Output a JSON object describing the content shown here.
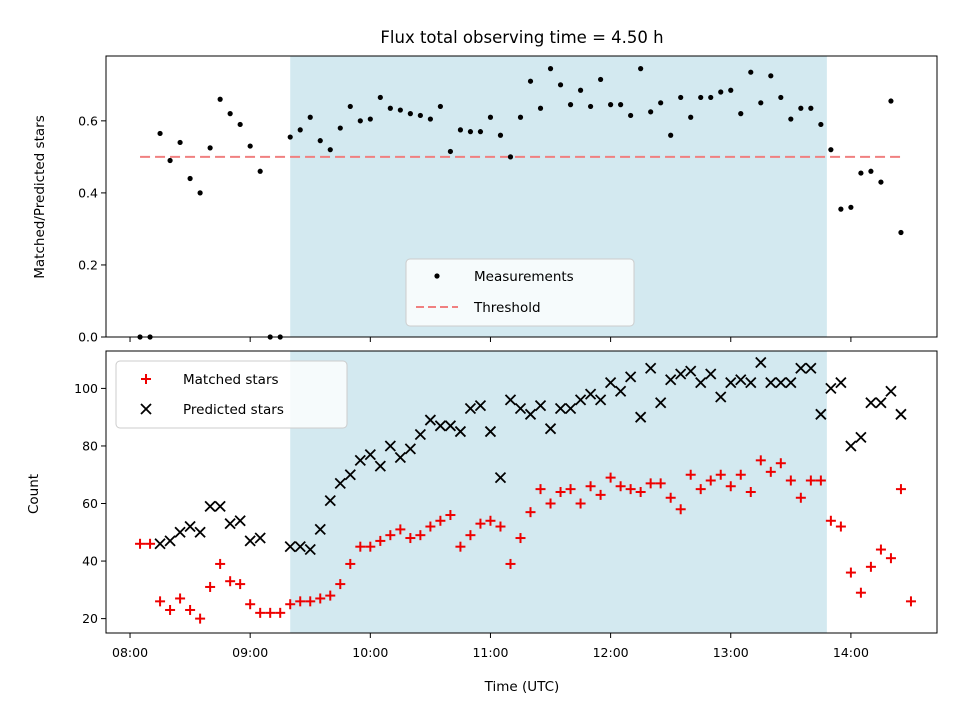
{
  "chart_data": [
    {
      "type": "scatter",
      "title": "Flux total observing time = 4.50 h",
      "ylabel": "Matched/Predicted stars",
      "xlim": [
        "07:48",
        "14:43"
      ],
      "ylim": [
        0,
        0.78
      ],
      "yticks": [
        0.0,
        0.2,
        0.4,
        0.6
      ],
      "ytick_labels": [
        "0.0",
        "0.2",
        "0.4",
        "0.6"
      ],
      "shaded_window": {
        "start": "09:20",
        "end": "13:48",
        "color": "#d3e9f0"
      },
      "threshold": {
        "name": "Threshold",
        "value": 0.5,
        "x_start": "08:05",
        "x_end": "14:25",
        "color": "#f08080"
      },
      "legend": {
        "placement": "lower-center",
        "entries": [
          "Measurements",
          "Threshold"
        ]
      },
      "series": [
        {
          "name": "Measurements",
          "marker": "dot",
          "color": "#000000",
          "points": [
            [
              "08:05",
              0.0
            ],
            [
              "08:10",
              0.0
            ],
            [
              "08:15",
              0.565
            ],
            [
              "08:20",
              0.49
            ],
            [
              "08:25",
              0.54
            ],
            [
              "08:30",
              0.44
            ],
            [
              "08:35",
              0.4
            ],
            [
              "08:40",
              0.525
            ],
            [
              "08:45",
              0.66
            ],
            [
              "08:50",
              0.62
            ],
            [
              "08:55",
              0.59
            ],
            [
              "09:00",
              0.53
            ],
            [
              "09:05",
              0.46
            ],
            [
              "09:10",
              0.0
            ],
            [
              "09:15",
              0.0
            ],
            [
              "09:20",
              0.555
            ],
            [
              "09:25",
              0.575
            ],
            [
              "09:30",
              0.61
            ],
            [
              "09:35",
              0.545
            ],
            [
              "09:40",
              0.52
            ],
            [
              "09:45",
              0.58
            ],
            [
              "09:50",
              0.64
            ],
            [
              "09:55",
              0.6
            ],
            [
              "10:00",
              0.605
            ],
            [
              "10:05",
              0.665
            ],
            [
              "10:10",
              0.635
            ],
            [
              "10:15",
              0.63
            ],
            [
              "10:20",
              0.62
            ],
            [
              "10:25",
              0.615
            ],
            [
              "10:30",
              0.605
            ],
            [
              "10:35",
              0.64
            ],
            [
              "10:40",
              0.515
            ],
            [
              "10:45",
              0.575
            ],
            [
              "10:50",
              0.57
            ],
            [
              "10:55",
              0.57
            ],
            [
              "11:00",
              0.61
            ],
            [
              "11:05",
              0.56
            ],
            [
              "11:10",
              0.5
            ],
            [
              "11:15",
              0.61
            ],
            [
              "11:20",
              0.71
            ],
            [
              "11:25",
              0.635
            ],
            [
              "11:30",
              0.745
            ],
            [
              "11:35",
              0.7
            ],
            [
              "11:40",
              0.645
            ],
            [
              "11:45",
              0.685
            ],
            [
              "11:50",
              0.64
            ],
            [
              "11:55",
              0.715
            ],
            [
              "12:00",
              0.645
            ],
            [
              "12:05",
              0.645
            ],
            [
              "12:10",
              0.615
            ],
            [
              "12:15",
              0.745
            ],
            [
              "12:20",
              0.625
            ],
            [
              "12:25",
              0.65
            ],
            [
              "12:30",
              0.56
            ],
            [
              "12:35",
              0.665
            ],
            [
              "12:40",
              0.61
            ],
            [
              "12:45",
              0.665
            ],
            [
              "12:50",
              0.665
            ],
            [
              "12:55",
              0.68
            ],
            [
              "13:00",
              0.685
            ],
            [
              "13:05",
              0.62
            ],
            [
              "13:10",
              0.735
            ],
            [
              "13:15",
              0.65
            ],
            [
              "13:20",
              0.725
            ],
            [
              "13:25",
              0.665
            ],
            [
              "13:30",
              0.605
            ],
            [
              "13:35",
              0.635
            ],
            [
              "13:40",
              0.635
            ],
            [
              "13:45",
              0.59
            ],
            [
              "13:50",
              0.52
            ],
            [
              "13:55",
              0.355
            ],
            [
              "14:00",
              0.36
            ],
            [
              "14:05",
              0.455
            ],
            [
              "14:10",
              0.46
            ],
            [
              "14:15",
              0.43
            ],
            [
              "14:20",
              0.655
            ],
            [
              "14:25",
              0.29
            ]
          ]
        }
      ]
    },
    {
      "type": "scatter",
      "xlabel": "Time (UTC)",
      "ylabel": "Count",
      "xlim": [
        "07:48",
        "14:43"
      ],
      "ylim": [
        15,
        113
      ],
      "xticks": [
        "08:00",
        "09:00",
        "10:00",
        "11:00",
        "12:00",
        "13:00",
        "14:00"
      ],
      "yticks": [
        20,
        40,
        60,
        80,
        100
      ],
      "shaded_window": {
        "start": "09:20",
        "end": "13:48",
        "color": "#d3e9f0"
      },
      "legend": {
        "placement": "upper-left",
        "entries": [
          "Matched stars",
          "Predicted stars"
        ]
      },
      "series": [
        {
          "name": "Matched stars",
          "marker": "plus",
          "color": "#ee0000",
          "points": [
            [
              "08:05",
              46
            ],
            [
              "08:10",
              46
            ],
            [
              "08:15",
              26
            ],
            [
              "08:20",
              23
            ],
            [
              "08:25",
              27
            ],
            [
              "08:30",
              23
            ],
            [
              "08:35",
              20
            ],
            [
              "08:40",
              31
            ],
            [
              "08:45",
              39
            ],
            [
              "08:50",
              33
            ],
            [
              "08:55",
              32
            ],
            [
              "09:00",
              25
            ],
            [
              "09:05",
              22
            ],
            [
              "09:10",
              22
            ],
            [
              "09:15",
              22
            ],
            [
              "09:20",
              25
            ],
            [
              "09:25",
              26
            ],
            [
              "09:30",
              26
            ],
            [
              "09:35",
              27
            ],
            [
              "09:40",
              28
            ],
            [
              "09:45",
              32
            ],
            [
              "09:50",
              39
            ],
            [
              "09:55",
              45
            ],
            [
              "10:00",
              45
            ],
            [
              "10:05",
              47
            ],
            [
              "10:10",
              49
            ],
            [
              "10:15",
              51
            ],
            [
              "10:20",
              48
            ],
            [
              "10:25",
              49
            ],
            [
              "10:30",
              52
            ],
            [
              "10:35",
              54
            ],
            [
              "10:40",
              56
            ],
            [
              "10:45",
              45
            ],
            [
              "10:50",
              49
            ],
            [
              "10:55",
              53
            ],
            [
              "11:00",
              54
            ],
            [
              "11:05",
              52
            ],
            [
              "11:10",
              39
            ],
            [
              "11:15",
              48
            ],
            [
              "11:20",
              57
            ],
            [
              "11:25",
              65
            ],
            [
              "11:30",
              60
            ],
            [
              "11:35",
              64
            ],
            [
              "11:40",
              65
            ],
            [
              "11:45",
              60
            ],
            [
              "11:50",
              66
            ],
            [
              "11:55",
              63
            ],
            [
              "12:00",
              69
            ],
            [
              "12:05",
              66
            ],
            [
              "12:10",
              65
            ],
            [
              "12:15",
              64
            ],
            [
              "12:20",
              67
            ],
            [
              "12:25",
              67
            ],
            [
              "12:30",
              62
            ],
            [
              "12:35",
              58
            ],
            [
              "12:40",
              70
            ],
            [
              "12:45",
              65
            ],
            [
              "12:50",
              68
            ],
            [
              "12:55",
              70
            ],
            [
              "13:00",
              66
            ],
            [
              "13:05",
              70
            ],
            [
              "13:10",
              64
            ],
            [
              "13:15",
              75
            ],
            [
              "13:20",
              71
            ],
            [
              "13:25",
              74
            ],
            [
              "13:30",
              68
            ],
            [
              "13:35",
              62
            ],
            [
              "13:40",
              68
            ],
            [
              "13:45",
              68
            ],
            [
              "13:50",
              54
            ],
            [
              "13:55",
              52
            ],
            [
              "14:00",
              36
            ],
            [
              "14:05",
              29
            ],
            [
              "14:10",
              38
            ],
            [
              "14:15",
              44
            ],
            [
              "14:20",
              41
            ],
            [
              "14:25",
              65
            ],
            [
              "14:30",
              26
            ]
          ]
        },
        {
          "name": "Predicted stars",
          "marker": "x",
          "color": "#000000",
          "points": [
            [
              "08:15",
              46
            ],
            [
              "08:20",
              47
            ],
            [
              "08:25",
              50
            ],
            [
              "08:30",
              52
            ],
            [
              "08:35",
              50
            ],
            [
              "08:40",
              59
            ],
            [
              "08:45",
              59
            ],
            [
              "08:50",
              53
            ],
            [
              "08:55",
              54
            ],
            [
              "09:00",
              47
            ],
            [
              "09:05",
              48
            ],
            [
              "09:20",
              45
            ],
            [
              "09:25",
              45
            ],
            [
              "09:30",
              44
            ],
            [
              "09:35",
              51
            ],
            [
              "09:40",
              61
            ],
            [
              "09:45",
              67
            ],
            [
              "09:50",
              70
            ],
            [
              "09:55",
              75
            ],
            [
              "10:00",
              77
            ],
            [
              "10:05",
              73
            ],
            [
              "10:10",
              80
            ],
            [
              "10:15",
              76
            ],
            [
              "10:20",
              79
            ],
            [
              "10:25",
              84
            ],
            [
              "10:30",
              89
            ],
            [
              "10:35",
              87
            ],
            [
              "10:40",
              87
            ],
            [
              "10:45",
              85
            ],
            [
              "10:50",
              93
            ],
            [
              "10:55",
              94
            ],
            [
              "11:00",
              85
            ],
            [
              "11:05",
              69
            ],
            [
              "11:10",
              96
            ],
            [
              "11:15",
              93
            ],
            [
              "11:20",
              91
            ],
            [
              "11:25",
              94
            ],
            [
              "11:30",
              86
            ],
            [
              "11:35",
              93
            ],
            [
              "11:40",
              93
            ],
            [
              "11:45",
              96
            ],
            [
              "11:50",
              98
            ],
            [
              "11:55",
              96
            ],
            [
              "12:00",
              102
            ],
            [
              "12:05",
              99
            ],
            [
              "12:10",
              104
            ],
            [
              "12:15",
              90
            ],
            [
              "12:20",
              107
            ],
            [
              "12:25",
              95
            ],
            [
              "12:30",
              103
            ],
            [
              "12:35",
              105
            ],
            [
              "12:40",
              106
            ],
            [
              "12:45",
              102
            ],
            [
              "12:50",
              105
            ],
            [
              "12:55",
              97
            ],
            [
              "13:00",
              102
            ],
            [
              "13:05",
              103
            ],
            [
              "13:10",
              102
            ],
            [
              "13:15",
              109
            ],
            [
              "13:20",
              102
            ],
            [
              "13:25",
              102
            ],
            [
              "13:30",
              102
            ],
            [
              "13:35",
              107
            ],
            [
              "13:40",
              107
            ],
            [
              "13:45",
              91
            ],
            [
              "13:50",
              100
            ],
            [
              "13:55",
              102
            ],
            [
              "14:00",
              80
            ],
            [
              "14:05",
              83
            ],
            [
              "14:10",
              95
            ],
            [
              "14:15",
              95
            ],
            [
              "14:20",
              99
            ],
            [
              "14:25",
              91
            ]
          ]
        }
      ]
    }
  ]
}
